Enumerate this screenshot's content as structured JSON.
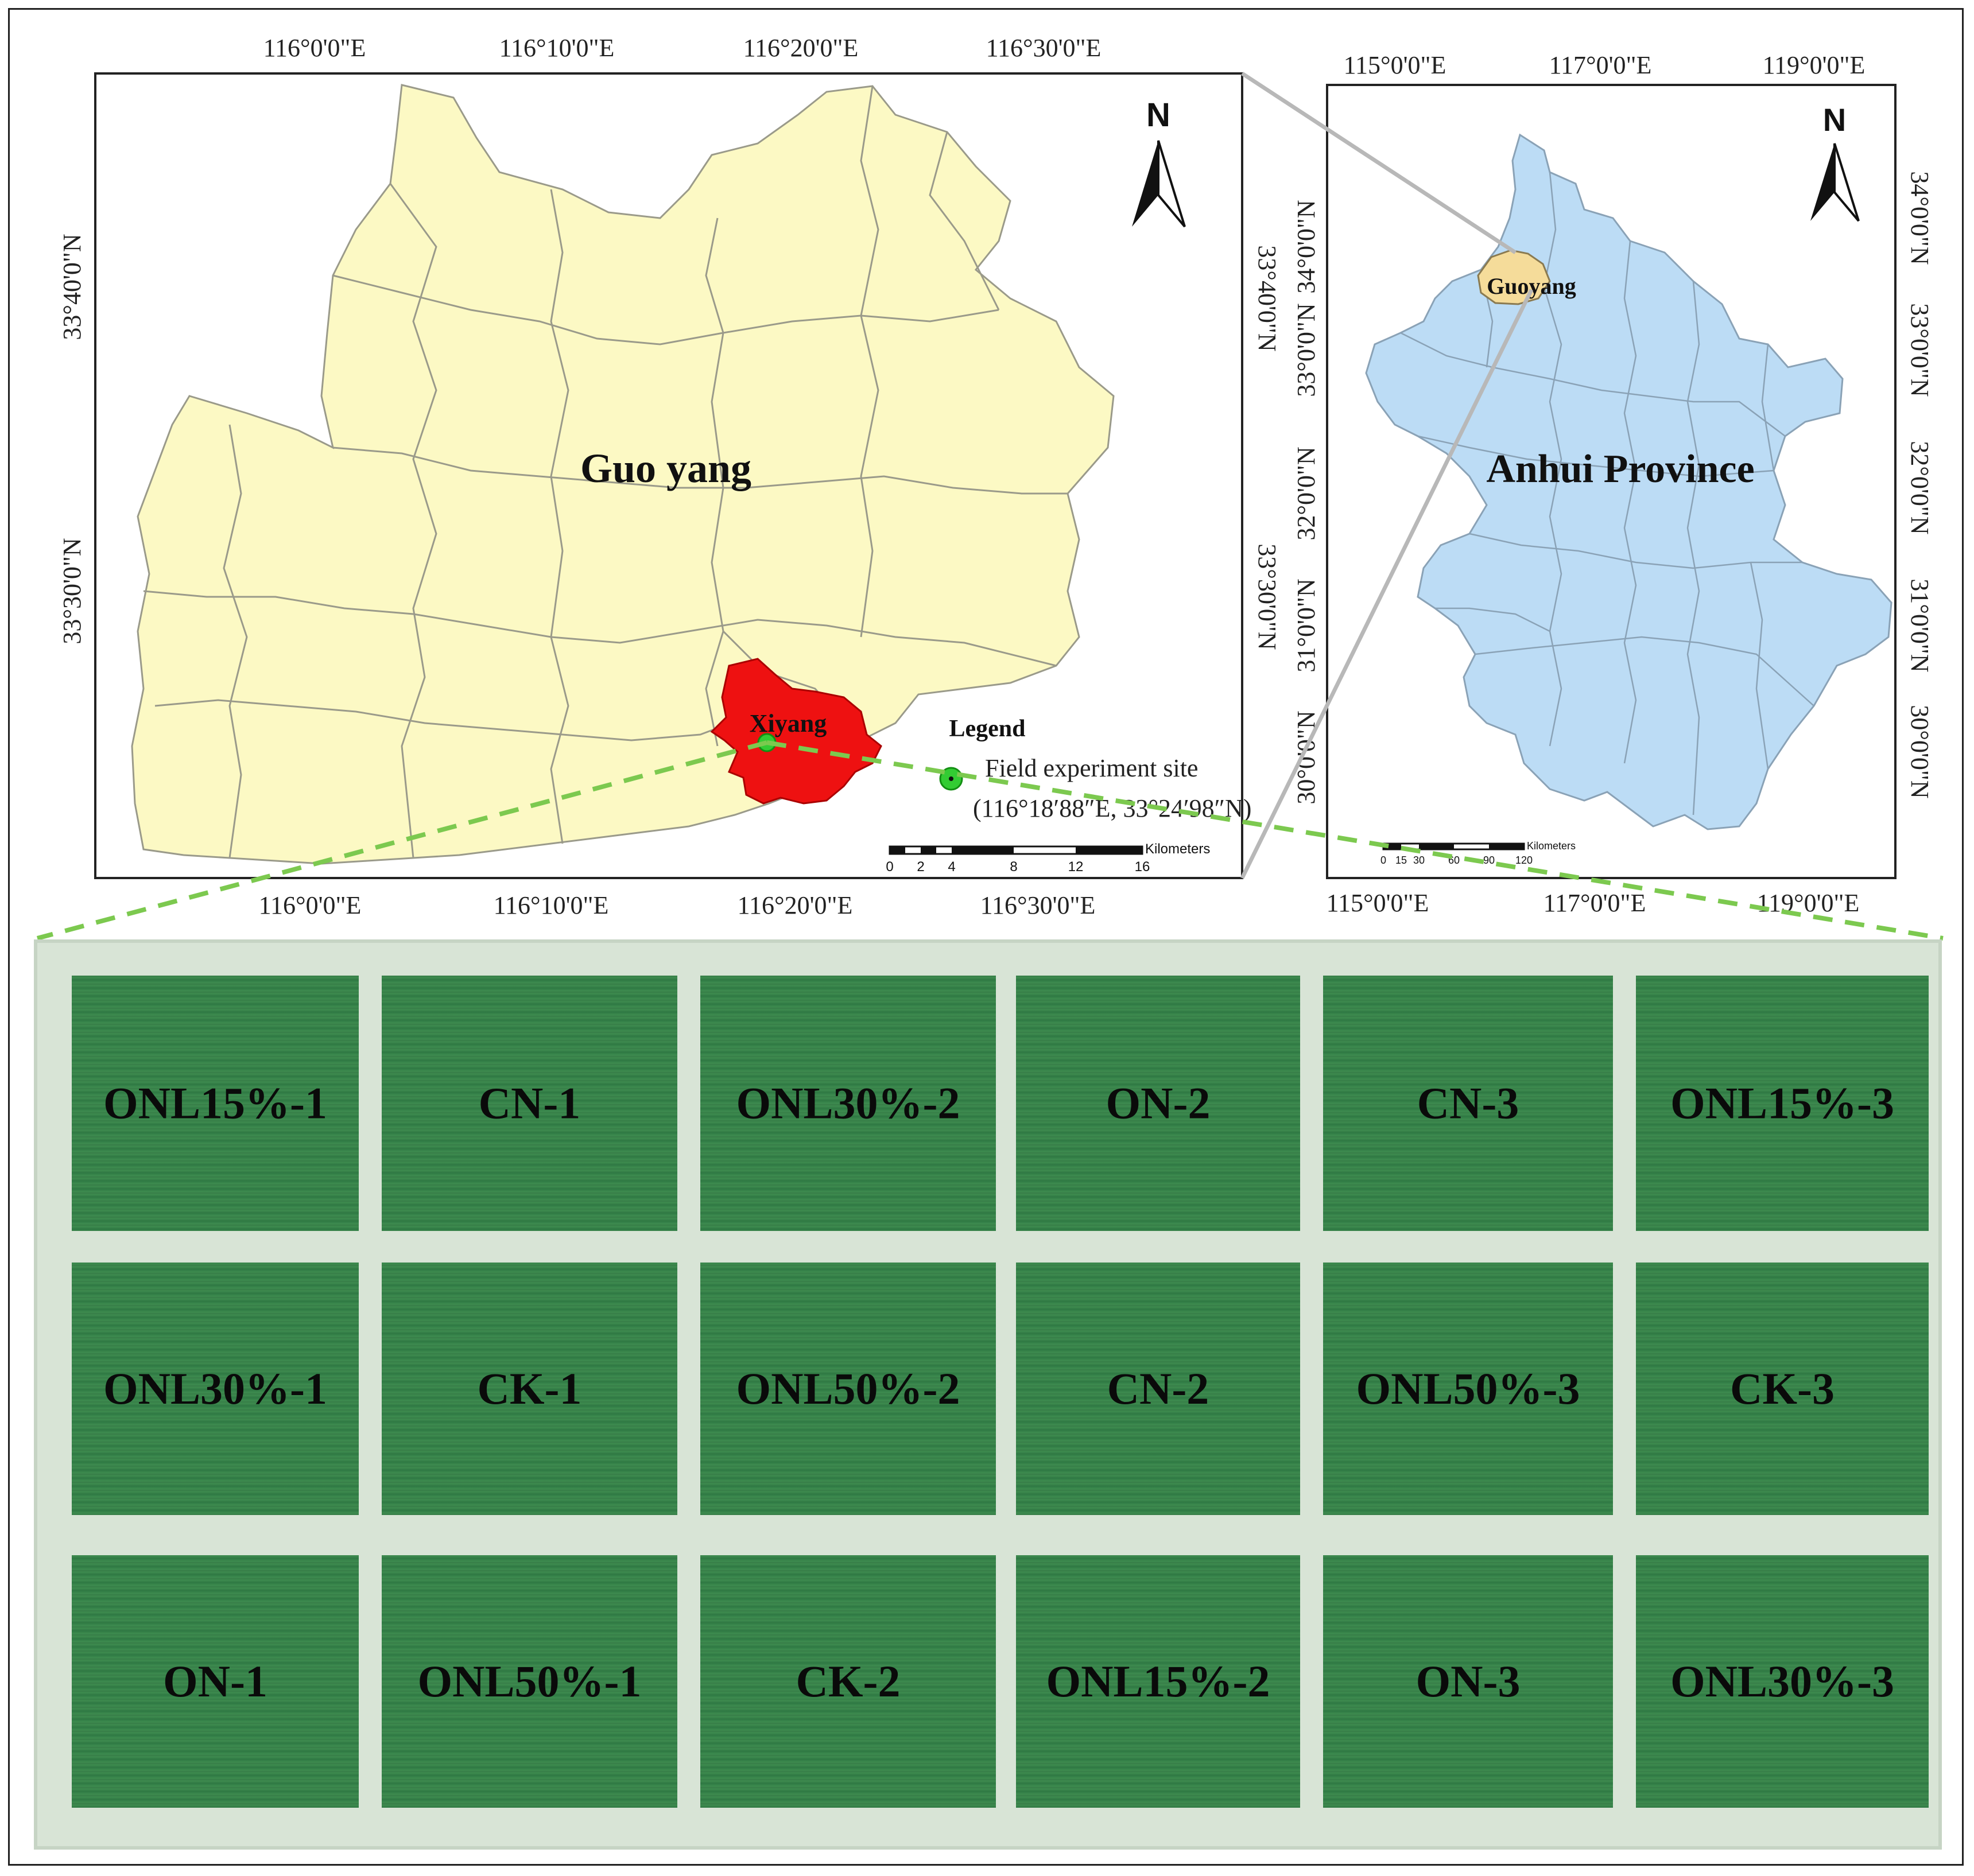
{
  "local_map": {
    "name_label": "Guo yang",
    "town_label": "Xiyang",
    "top_lon_ticks": [
      "116°0'0\"E",
      "116°10'0\"E",
      "116°20'0\"E",
      "116°30'0\"E"
    ],
    "bottom_lon_ticks": [
      "116°0'0\"E",
      "116°10'0\"E",
      "116°20'0\"E",
      "116°30'0\"E"
    ],
    "left_lat_ticks": [
      "33°40'0\"N",
      "33°30'0\"N"
    ],
    "right_lat_ticks": [
      "33°40'0\"N",
      "33°30'0\"N"
    ],
    "north_label": "N",
    "legend_title": "Legend",
    "legend_item": "Field experiment site",
    "legend_coords": "(116°18′88″E, 33°24′98″N)",
    "scale_unit": "Kilometers",
    "scale_ticks": [
      "0",
      "2",
      "4",
      "8",
      "12",
      "16"
    ],
    "colors": {
      "county": "#fcf9c4",
      "town": "#ee1111",
      "site": "#33cc33"
    }
  },
  "province_map": {
    "name_label": "Anhui Province",
    "county_label": "Guoyang",
    "top_lon_ticks": [
      "115°0'0\"E",
      "117°0'0\"E",
      "119°0'0\"E"
    ],
    "bottom_lon_ticks": [
      "115°0'0\"E",
      "117°0'0\"E",
      "119°0'0\"E"
    ],
    "left_lat_ticks": [
      "34°0'0\"N",
      "33°0'0\"N",
      "32°0'0\"N",
      "31°0'0\"N",
      "30°0'0\"N"
    ],
    "right_lat_ticks": [
      "34°0'0\"N",
      "33°0'0\"N",
      "32°0'0\"N",
      "31°0'0\"N",
      "30°0'0\"N"
    ],
    "north_label": "N",
    "scale_unit": "Kilometers",
    "scale_ticks": [
      "0",
      "15",
      "30",
      "60",
      "90",
      "120"
    ],
    "colors": {
      "province": "#bcdcf5",
      "county": "#f5dc9a"
    }
  },
  "field_plots": {
    "rows": [
      [
        "ONL15%-1",
        "CN-1",
        "ONL30%-2",
        "ON-2",
        "CN-3",
        "ONL15%-3"
      ],
      [
        "ONL30%-1",
        "CK-1",
        "ONL50%-2",
        "CN-2",
        "ONL50%-3",
        "CK-3"
      ],
      [
        "ON-1",
        "ONL50%-1",
        "CK-2",
        "ONL15%-2",
        "ON-3",
        "ONL30%-3"
      ]
    ],
    "colors": {
      "crop": "#3d8a4c",
      "path": "#d8e4d6"
    }
  }
}
